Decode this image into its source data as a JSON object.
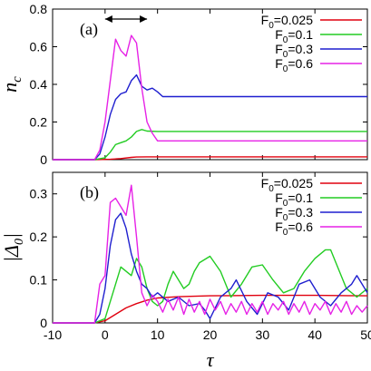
{
  "colors": {
    "red": "#e0000f",
    "green": "#22cc22",
    "blue": "#1f1fcf",
    "magenta": "#e622e6"
  },
  "chart_data": [
    {
      "type": "line",
      "panel": "(a)",
      "ylabel": "n_c",
      "xlim": [
        -10,
        50
      ],
      "ylim": [
        0,
        0.8
      ],
      "xticks": [
        -10,
        0,
        10,
        20,
        30,
        40,
        50
      ],
      "yticks": [
        0,
        0.2,
        0.4,
        0.6,
        0.8
      ],
      "legend_position": "top-right",
      "annotation": "double-headed arrow spanning tau = 0 to 8",
      "series": [
        {
          "name": "F0=0.025",
          "color": "#e0000f",
          "x": [
            -10,
            -2,
            1,
            3,
            5,
            6,
            8,
            50
          ],
          "y": [
            0,
            0,
            0.002,
            0.006,
            0.012,
            0.014,
            0.015,
            0.015
          ]
        },
        {
          "name": "F0=0.1",
          "color": "#22cc22",
          "x": [
            -10,
            -2,
            0,
            1,
            2,
            3,
            4,
            5,
            6,
            7,
            8,
            10,
            50
          ],
          "y": [
            0,
            0,
            0.01,
            0.04,
            0.08,
            0.09,
            0.1,
            0.12,
            0.15,
            0.16,
            0.152,
            0.15,
            0.15
          ]
        },
        {
          "name": "F0=0.3",
          "color": "#1f1fcf",
          "x": [
            -10,
            -2,
            -1,
            0,
            1,
            2,
            3,
            4,
            5,
            6,
            7,
            8,
            9,
            10,
            11,
            50
          ],
          "y": [
            0,
            0,
            0.03,
            0.12,
            0.24,
            0.32,
            0.35,
            0.36,
            0.42,
            0.45,
            0.39,
            0.37,
            0.38,
            0.36,
            0.335,
            0.335
          ]
        },
        {
          "name": "F0=0.6",
          "color": "#e622e6",
          "x": [
            -10,
            -2,
            -1,
            0,
            1,
            2,
            3,
            4,
            5,
            6,
            7,
            8,
            9,
            10,
            50
          ],
          "y": [
            0,
            0,
            0.05,
            0.2,
            0.42,
            0.64,
            0.58,
            0.55,
            0.66,
            0.62,
            0.38,
            0.2,
            0.14,
            0.1,
            0.1
          ]
        }
      ]
    },
    {
      "type": "line",
      "panel": "(b)",
      "xlabel": "τ",
      "ylabel": "|Δ0|",
      "xlim": [
        -10,
        50
      ],
      "ylim": [
        0,
        0.35
      ],
      "xticks": [
        -10,
        0,
        10,
        20,
        30,
        40,
        50
      ],
      "yticks": [
        0,
        0.1,
        0.2,
        0.3
      ],
      "legend_position": "top-right",
      "series": [
        {
          "name": "F0=0.025",
          "color": "#e0000f",
          "x": [
            -10,
            -2,
            0,
            2,
            4,
            6,
            8,
            10,
            14,
            20,
            30,
            40,
            50
          ],
          "y": [
            0,
            0,
            0.005,
            0.02,
            0.035,
            0.045,
            0.053,
            0.058,
            0.061,
            0.063,
            0.064,
            0.064,
            0.063
          ]
        },
        {
          "name": "F0=0.1",
          "color": "#22cc22",
          "x": [
            -10,
            -2,
            0,
            1,
            2,
            3,
            4,
            5,
            6,
            7,
            8,
            9,
            10,
            11,
            12,
            13,
            14,
            15,
            16,
            17,
            18,
            20,
            22,
            24,
            26,
            28,
            30,
            32,
            34,
            36,
            38,
            40,
            42,
            43,
            44,
            46,
            48,
            50
          ],
          "y": [
            0,
            0,
            0.01,
            0.05,
            0.09,
            0.13,
            0.12,
            0.11,
            0.15,
            0.13,
            0.08,
            0.05,
            0.04,
            0.05,
            0.09,
            0.12,
            0.1,
            0.08,
            0.09,
            0.12,
            0.14,
            0.155,
            0.12,
            0.06,
            0.09,
            0.13,
            0.135,
            0.1,
            0.07,
            0.08,
            0.12,
            0.15,
            0.17,
            0.17,
            0.14,
            0.08,
            0.06,
            0.08
          ]
        },
        {
          "name": "F0=0.3",
          "color": "#1f1fcf",
          "x": [
            -10,
            -2,
            -1,
            0,
            1,
            2,
            3,
            4,
            5,
            6,
            7,
            8,
            9,
            10,
            12,
            14,
            16,
            18,
            19,
            20,
            22,
            24,
            25,
            27,
            29,
            31,
            33,
            35,
            37,
            39,
            41,
            43,
            45,
            47,
            48,
            50
          ],
          "y": [
            0,
            0,
            0.02,
            0.08,
            0.18,
            0.24,
            0.255,
            0.22,
            0.16,
            0.12,
            0.09,
            0.08,
            0.06,
            0.07,
            0.05,
            0.06,
            0.04,
            0.045,
            0.03,
            0.01,
            0.06,
            0.08,
            0.1,
            0.05,
            0.02,
            0.07,
            0.06,
            0.03,
            0.09,
            0.1,
            0.06,
            0.04,
            0.07,
            0.09,
            0.11,
            0.07
          ]
        },
        {
          "name": "F0=0.6",
          "color": "#e622e6",
          "x": [
            -10,
            -2,
            -1,
            0,
            1,
            2,
            3,
            4,
            5,
            6,
            7,
            8,
            9,
            10,
            11,
            12,
            13,
            14,
            15,
            16,
            17,
            18,
            19,
            20,
            21,
            22,
            23,
            24,
            25,
            26,
            27,
            28,
            29,
            30,
            31,
            32,
            33,
            34,
            35,
            36,
            37,
            38,
            39,
            40,
            41,
            42,
            43,
            44,
            45,
            46,
            47,
            48,
            49,
            50
          ],
          "y": [
            0,
            0,
            0.09,
            0.11,
            0.28,
            0.29,
            0.27,
            0.25,
            0.32,
            0.2,
            0.07,
            0.04,
            0.065,
            0.05,
            0.025,
            0.055,
            0.03,
            0.06,
            0.02,
            0.055,
            0.025,
            0.05,
            0.02,
            0.055,
            0.03,
            0.05,
            0.02,
            0.045,
            0.025,
            0.05,
            0.02,
            0.045,
            0.025,
            0.05,
            0.02,
            0.045,
            0.03,
            0.05,
            0.02,
            0.045,
            0.025,
            0.05,
            0.02,
            0.045,
            0.03,
            0.05,
            0.02,
            0.045,
            0.025,
            0.05,
            0.02,
            0.04,
            0.025,
            0.04
          ]
        }
      ]
    }
  ]
}
